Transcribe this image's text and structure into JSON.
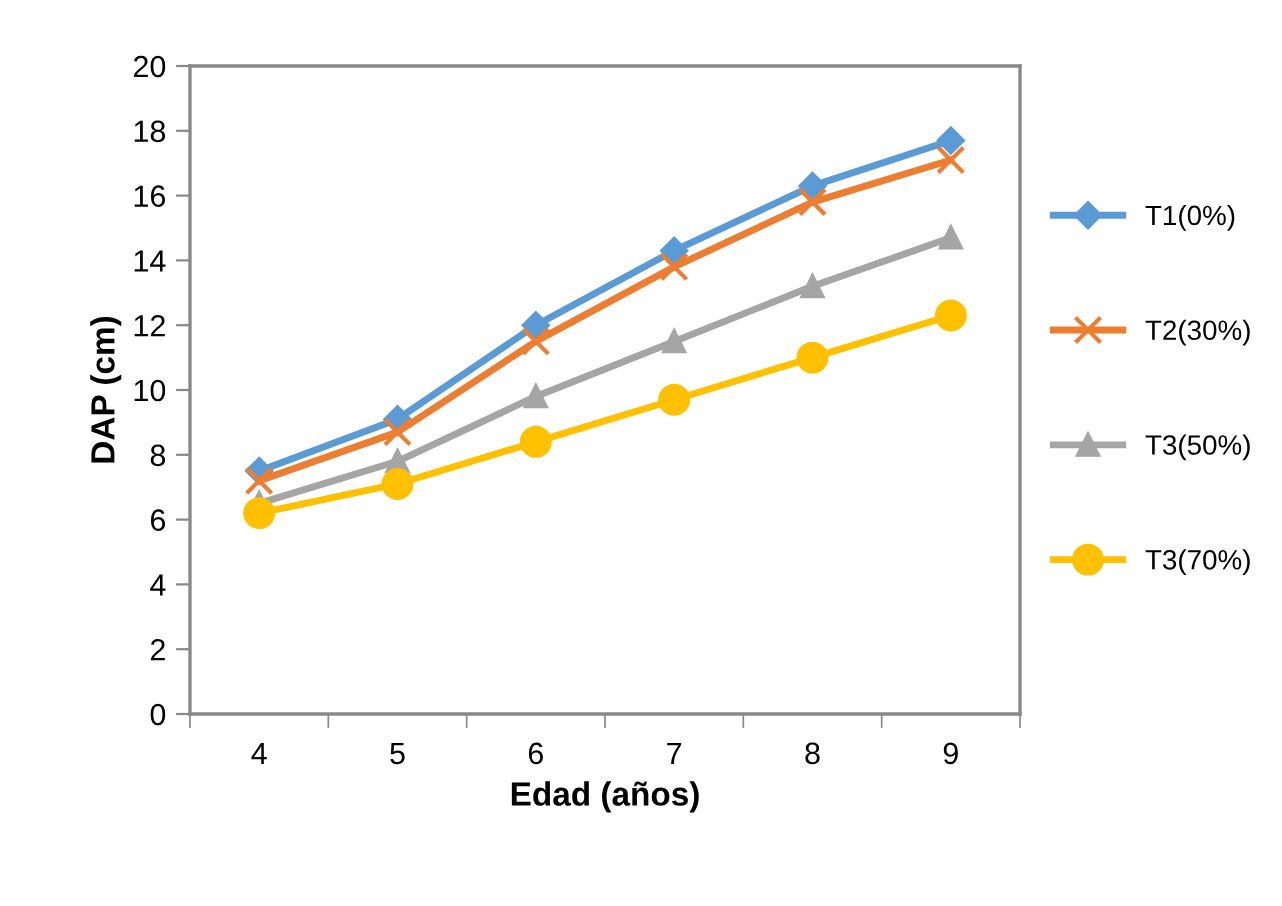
{
  "chart_data": {
    "type": "line",
    "xlabel": "Edad (años)",
    "ylabel": "DAP (cm)",
    "categories": [
      "4",
      "5",
      "6",
      "7",
      "8",
      "9"
    ],
    "series": [
      {
        "name": "T1(0%)",
        "color": "#5b9bd5",
        "marker": "diamond",
        "values": [
          7.5,
          9.1,
          12.0,
          14.3,
          16.3,
          17.7
        ]
      },
      {
        "name": "T2(30%)",
        "color": "#ed7d31",
        "marker": "cross",
        "values": [
          7.2,
          8.7,
          11.5,
          13.8,
          15.8,
          17.1
        ]
      },
      {
        "name": "T3(50%)",
        "color": "#a5a5a5",
        "marker": "triangle",
        "values": [
          6.5,
          7.8,
          9.8,
          11.5,
          13.2,
          14.7
        ]
      },
      {
        "name": "T3(70%)",
        "color": "#ffc000",
        "marker": "circle",
        "values": [
          6.2,
          7.1,
          8.4,
          9.7,
          11.0,
          12.3
        ]
      }
    ],
    "ylim": [
      0,
      20
    ],
    "yticks": [
      0,
      2,
      4,
      6,
      8,
      10,
      12,
      14,
      16,
      18,
      20
    ],
    "grid": false,
    "legend": "right",
    "line_style": "solid"
  }
}
